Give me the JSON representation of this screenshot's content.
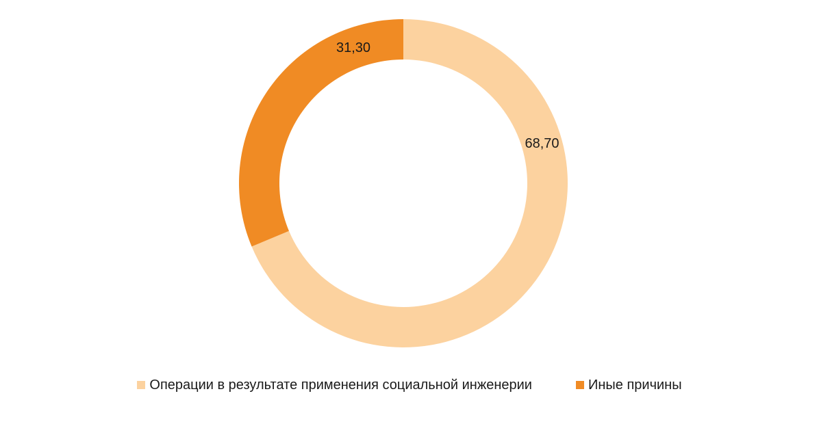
{
  "chart_data": {
    "type": "pie",
    "variant": "donut",
    "title": "",
    "series": [
      {
        "name": "Операции в результате применения социальной инженерии",
        "value": 68.7,
        "label": "68,70",
        "color": "#fcd29f"
      },
      {
        "name": "Иные причины",
        "value": 31.3,
        "label": "31,30",
        "color": "#f08b24"
      }
    ],
    "legend_position": "bottom"
  }
}
